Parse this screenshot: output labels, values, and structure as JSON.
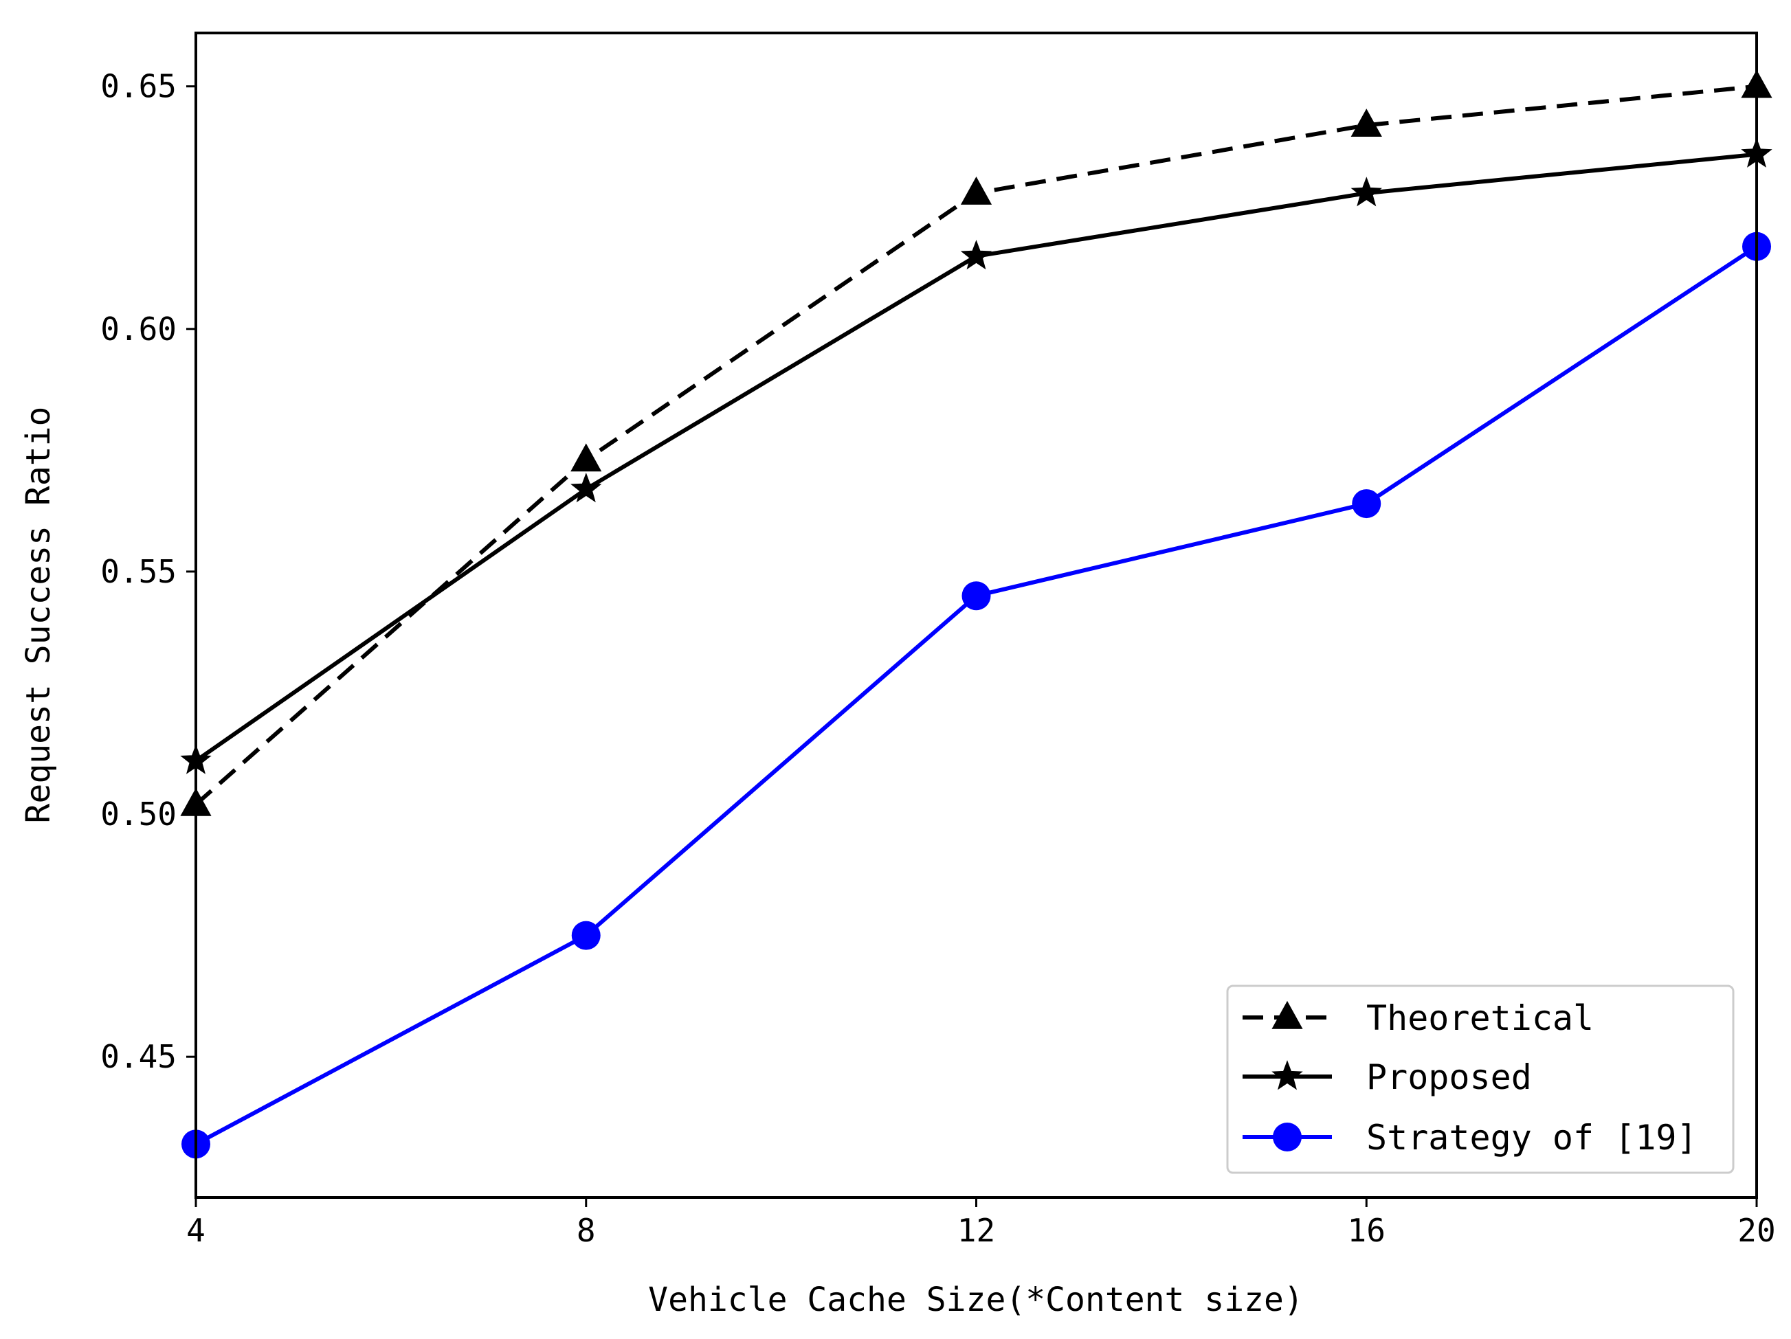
{
  "chart_data": {
    "type": "line",
    "title": "",
    "xlabel": "Vehicle Cache Size(*Content size)",
    "ylabel": "Request Success Ratio",
    "x": [
      4,
      8,
      12,
      16,
      20
    ],
    "xlim": [
      4,
      20
    ],
    "ylim": [
      0.421,
      0.661
    ],
    "xticks": [
      4,
      8,
      12,
      16,
      20
    ],
    "xtick_labels": [
      "4",
      "8",
      "12",
      "16",
      "20"
    ],
    "yticks": [
      0.45,
      0.5,
      0.55,
      0.6,
      0.65
    ],
    "ytick_labels": [
      "0.45",
      "0.50",
      "0.55",
      "0.60",
      "0.65"
    ],
    "grid": false,
    "legend_position": "lower-right",
    "series": [
      {
        "name": "Theoretical",
        "values": [
          0.502,
          0.573,
          0.628,
          0.642,
          0.65
        ],
        "color": "#000000",
        "line_style": "dashed",
        "marker": "triangle"
      },
      {
        "name": "Proposed",
        "values": [
          0.511,
          0.567,
          0.615,
          0.628,
          0.636
        ],
        "color": "#000000",
        "line_style": "solid",
        "marker": "star"
      },
      {
        "name": "Strategy of [19]",
        "values": [
          0.432,
          0.475,
          0.545,
          0.564,
          0.617
        ],
        "color": "#0000ff",
        "line_style": "solid",
        "marker": "circle"
      }
    ]
  }
}
